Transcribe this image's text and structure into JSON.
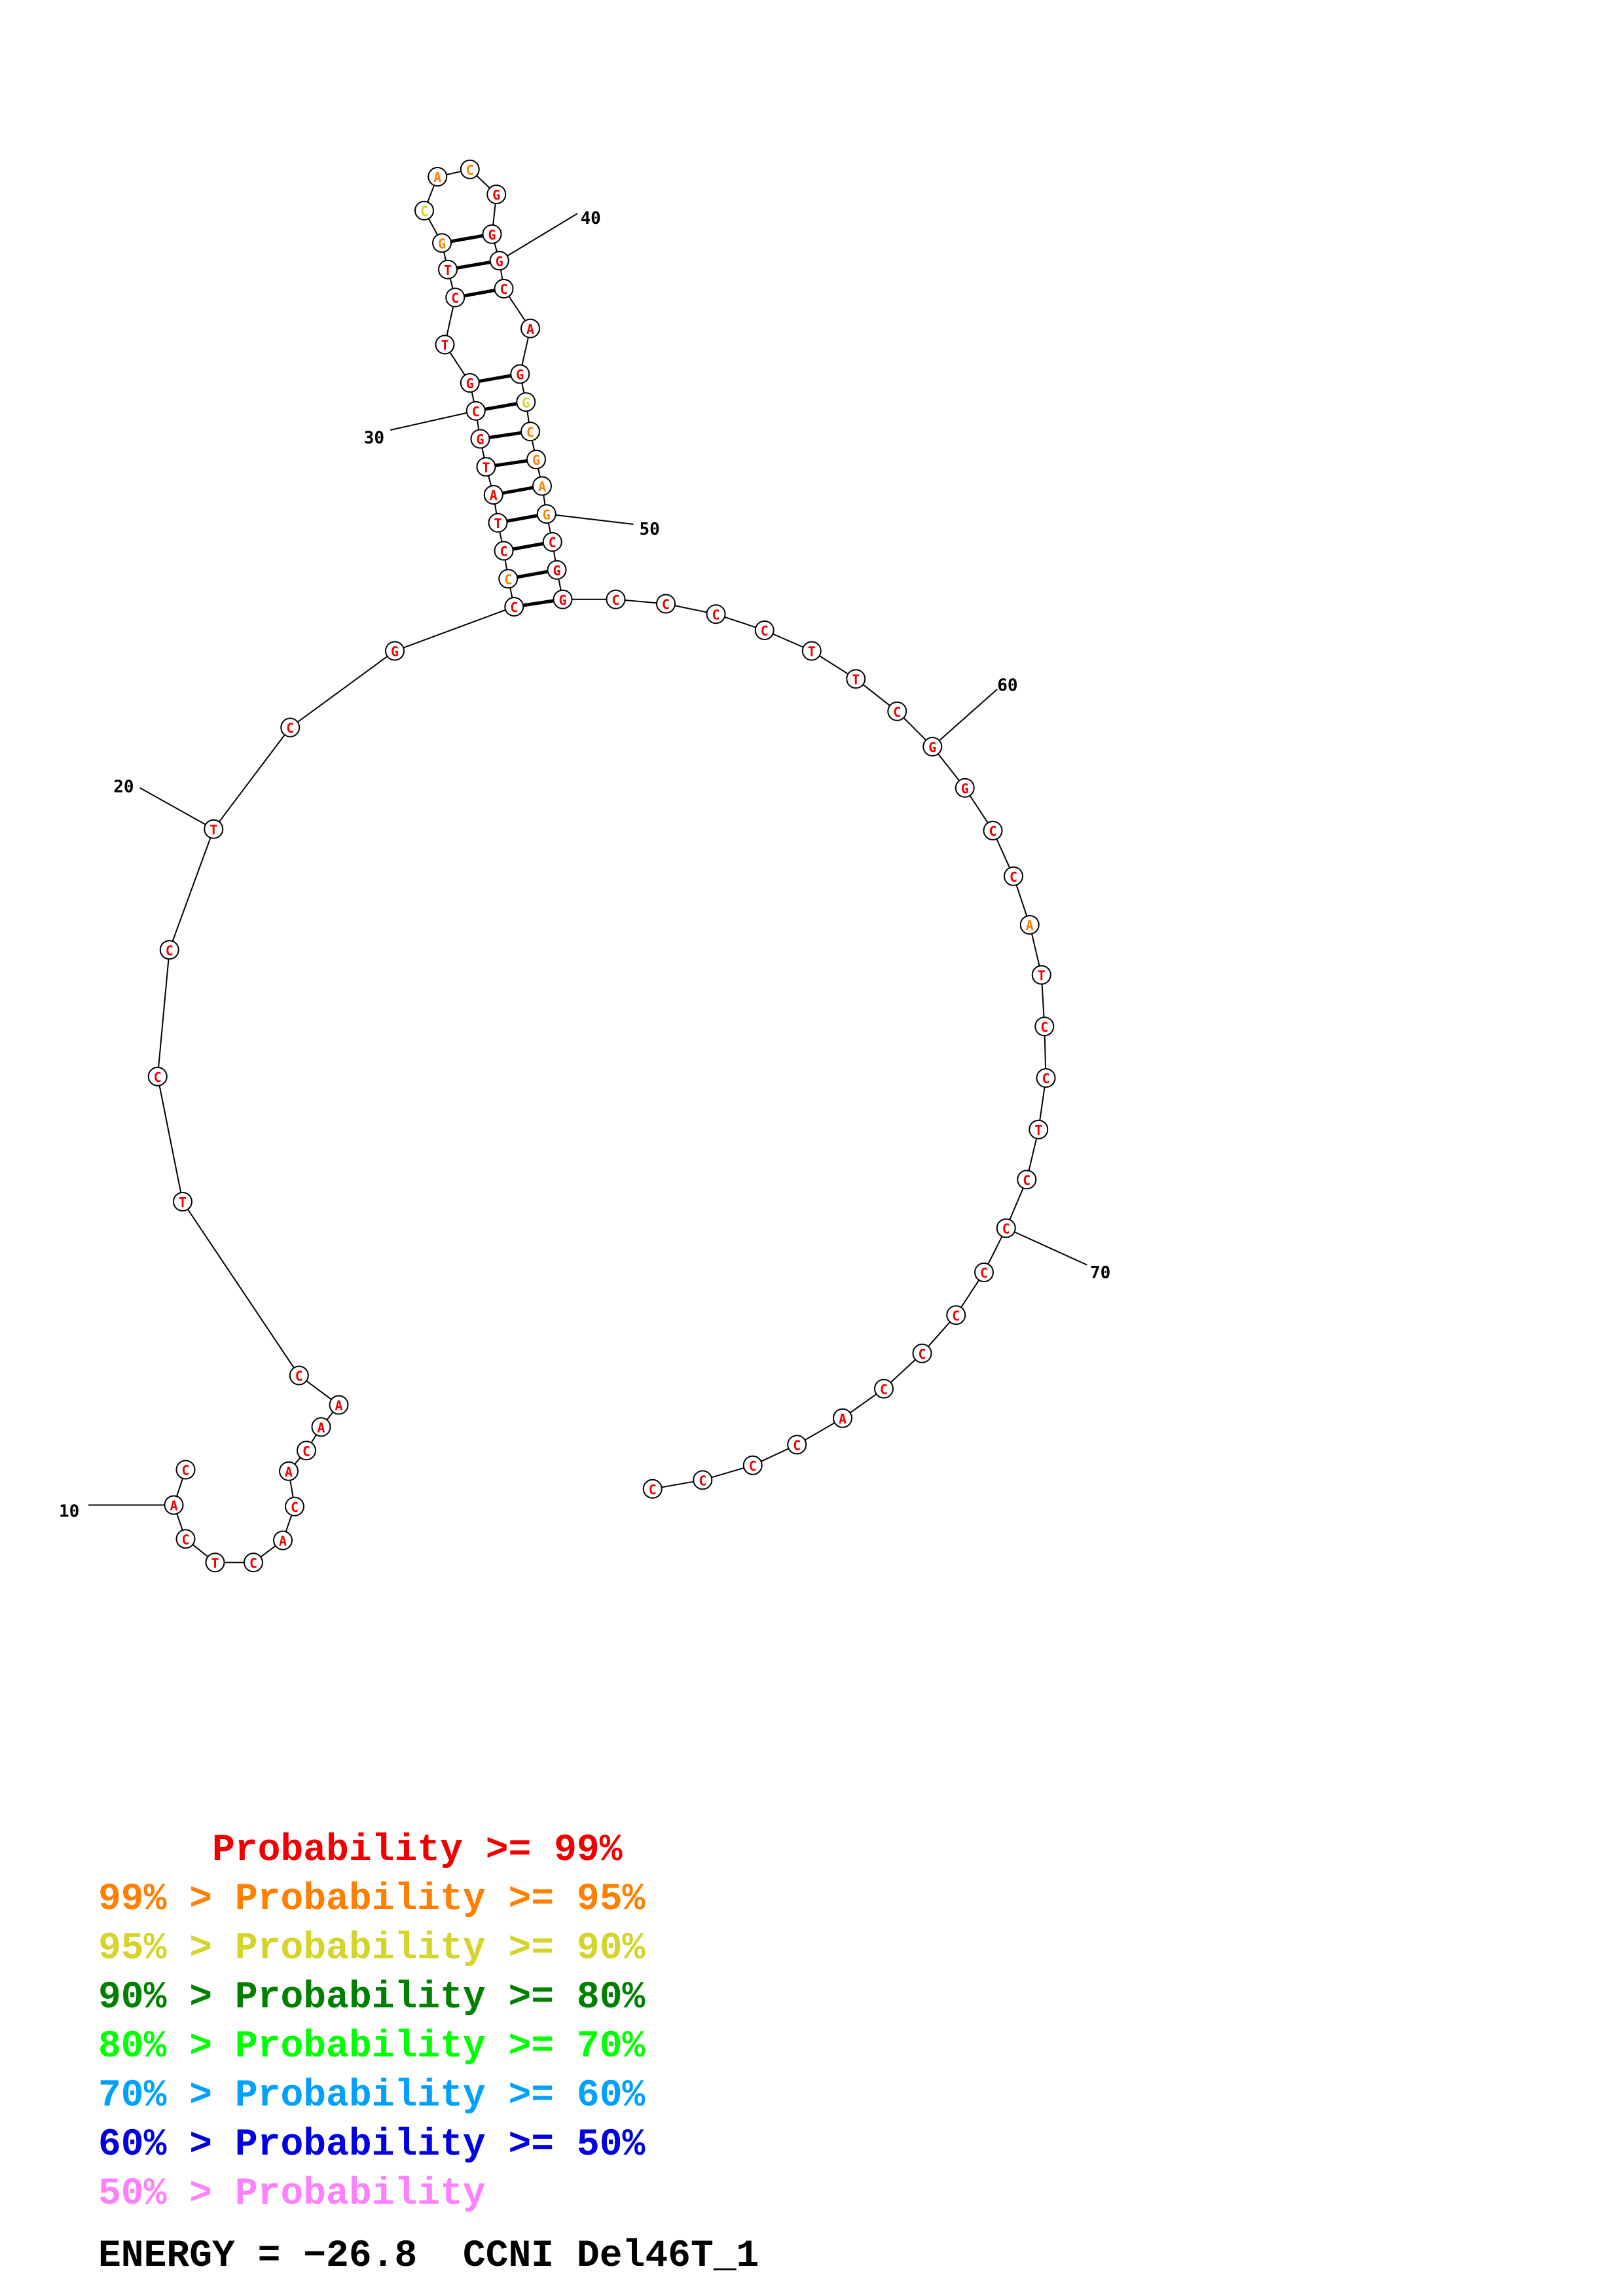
{
  "structure": {
    "sequence": [
      "C",
      "C",
      "C",
      "C",
      "A",
      "C",
      "C",
      "C",
      "C",
      "C",
      "C",
      "T",
      "C",
      "C",
      "T",
      "A",
      "C",
      "C",
      "G",
      "G",
      "C",
      "T",
      "T",
      "C",
      "C",
      "C",
      "C",
      "G",
      "G",
      "C",
      "G",
      "A",
      "G",
      "C",
      "G",
      "G",
      "A",
      "C",
      "G",
      "G",
      "G",
      "C",
      "A",
      "C",
      "G",
      "T",
      "C",
      "T",
      "G",
      "C",
      "G",
      "T",
      "A",
      "T",
      "C",
      "C",
      "C",
      "G",
      "C",
      "T",
      "C",
      "C",
      "T",
      "C",
      "A",
      "A",
      "C",
      "A",
      "C",
      "A",
      "C",
      "T",
      "C",
      "A",
      "C"
    ],
    "probability_class": [
      "p99",
      "p99",
      "p99",
      "p99",
      "p99",
      "p99",
      "p99",
      "p99",
      "p99",
      "p99",
      "p99",
      "p99",
      "p99",
      "p99",
      "p99",
      "p95",
      "p99",
      "p99",
      "p99",
      "p99",
      "p99",
      "p99",
      "p99",
      "p99",
      "p99",
      "p99",
      "p99",
      "p99",
      "p99",
      "p99",
      "p95",
      "p95",
      "p95",
      "p95",
      "p90",
      "p99",
      "p99",
      "p99",
      "p99",
      "p99",
      "p99",
      "p95",
      "p95",
      "p90",
      "p95",
      "p99",
      "p99",
      "p99",
      "p99",
      "p99",
      "p99",
      "p99",
      "p99",
      "p99",
      "p99",
      "p95",
      "p99",
      "p99",
      "p99",
      "p99",
      "p99",
      "p99",
      "p99",
      "p99",
      "p99",
      "p99",
      "p99",
      "p99",
      "p99",
      "p99",
      "p99",
      "p99",
      "p99",
      "p99",
      "p99"
    ],
    "index_labels": [
      "10",
      "20",
      "30",
      "40",
      "50",
      "60",
      "70"
    ]
  },
  "colors": {
    "p99": "#f00000",
    "p95": "#ff7f00",
    "p90": "#d4d42a",
    "p80": "#008000",
    "p70": "#00ff00",
    "p60": "#00a0ff",
    "p50": "#0000e0",
    "plow": "#ff80ff"
  },
  "legend": [
    {
      "text": "     Probability >= 99%",
      "color": "#f00000"
    },
    {
      "text": "99% > Probability >= 95%",
      "color": "#ff7f00"
    },
    {
      "text": "95% > Probability >= 90%",
      "color": "#d4d42a"
    },
    {
      "text": "90% > Probability >= 80%",
      "color": "#008000"
    },
    {
      "text": "80% > Probability >= 70%",
      "color": "#00ff00"
    },
    {
      "text": "70% > Probability >= 60%",
      "color": "#00a0ff"
    },
    {
      "text": "60% > Probability >= 50%",
      "color": "#0000e0"
    },
    {
      "text": "50% > Probability",
      "color": "#ff80ff"
    }
  ],
  "energy_label": "ENERGY = −26.8  CCNI Del46T_1"
}
